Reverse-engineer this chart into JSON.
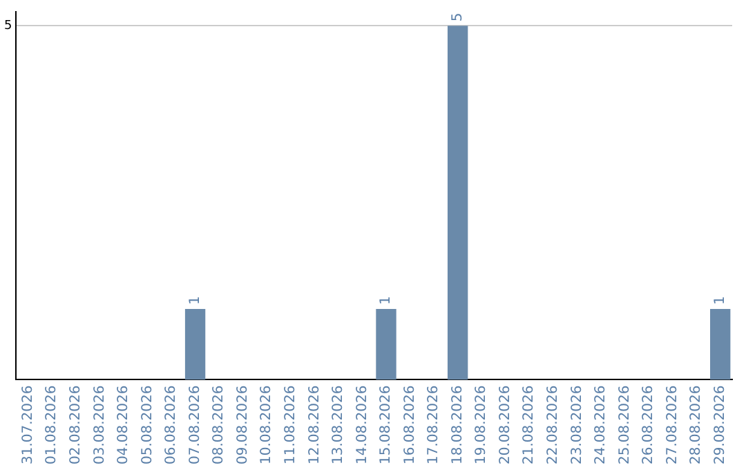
{
  "chart_data": {
    "type": "bar",
    "categories": [
      "31.07.2026",
      "01.08.2026",
      "02.08.2026",
      "03.08.2026",
      "04.08.2026",
      "05.08.2026",
      "06.08.2026",
      "07.08.2026",
      "08.08.2026",
      "09.08.2026",
      "10.08.2026",
      "11.08.2026",
      "12.08.2026",
      "13.08.2026",
      "14.08.2026",
      "15.08.2026",
      "16.08.2026",
      "17.08.2026",
      "18.08.2026",
      "19.08.2026",
      "20.08.2026",
      "21.08.2026",
      "22.08.2026",
      "23.08.2026",
      "24.08.2026",
      "25.08.2026",
      "26.08.2026",
      "27.08.2026",
      "28.08.2026",
      "29.08.2026"
    ],
    "values": [
      0,
      0,
      0,
      0,
      0,
      0,
      0,
      1,
      0,
      0,
      0,
      0,
      0,
      0,
      0,
      1,
      0,
      0,
      5,
      0,
      0,
      0,
      0,
      0,
      0,
      0,
      0,
      0,
      0,
      1
    ],
    "value_labels": [
      null,
      null,
      null,
      null,
      null,
      null,
      null,
      "1",
      null,
      null,
      null,
      null,
      null,
      null,
      null,
      "1",
      null,
      null,
      "5",
      null,
      null,
      null,
      null,
      null,
      null,
      null,
      null,
      null,
      null,
      "1"
    ],
    "color": "#6a8aaa",
    "ylim": [
      0,
      5.2
    ],
    "yticks": [
      5
    ],
    "grid": "y",
    "legend": false
  }
}
